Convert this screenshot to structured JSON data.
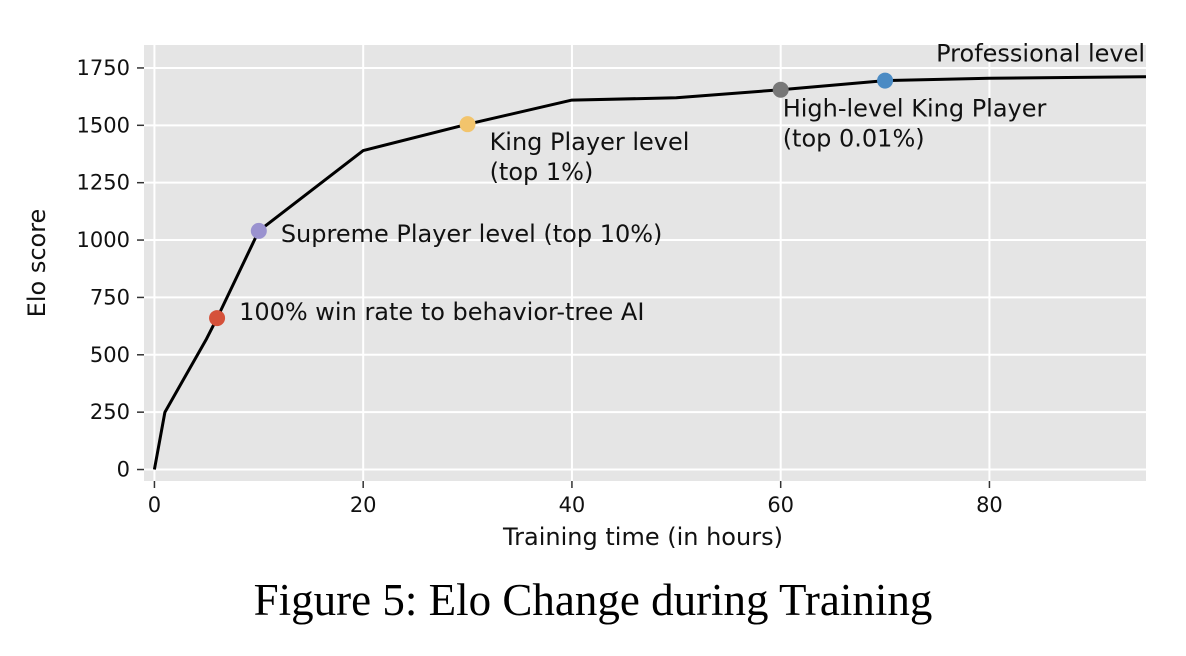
{
  "chart_data": {
    "type": "line",
    "title": "",
    "xlabel": "Training time (in hours)",
    "ylabel": "Elo score",
    "xlim": [
      -1,
      95
    ],
    "ylim": [
      -50,
      1850
    ],
    "x_ticks": [
      0,
      20,
      40,
      60,
      80
    ],
    "y_ticks": [
      0,
      250,
      500,
      750,
      1000,
      1250,
      1500,
      1750
    ],
    "grid": true,
    "series": [
      {
        "x": [
          0,
          1,
          5,
          6,
          10,
          20,
          30,
          40,
          50,
          60,
          70,
          80,
          95
        ],
        "y": [
          0,
          250,
          570,
          660,
          1040,
          1390,
          1505,
          1610,
          1620,
          1655,
          1695,
          1705,
          1712
        ],
        "color": "#000000"
      }
    ],
    "markers": [
      {
        "x": 6,
        "y": 660,
        "color": "#d5513a",
        "label": "100% win rate to behavior-tree AI"
      },
      {
        "x": 10,
        "y": 1040,
        "color": "#9a92cf",
        "label": "Supreme Player level (top 10%)"
      },
      {
        "x": 30,
        "y": 1505,
        "color": "#f2c46c",
        "label": "King Player level",
        "label2": "(top 1%)"
      },
      {
        "x": 60,
        "y": 1655,
        "color": "#777777",
        "label": "High-level King Player",
        "label2": "(top 0.01%)"
      },
      {
        "x": 70,
        "y": 1695,
        "color": "#4b8bc4",
        "label": "Professional level"
      }
    ]
  },
  "caption": "Figure 5: Elo Change during Training"
}
